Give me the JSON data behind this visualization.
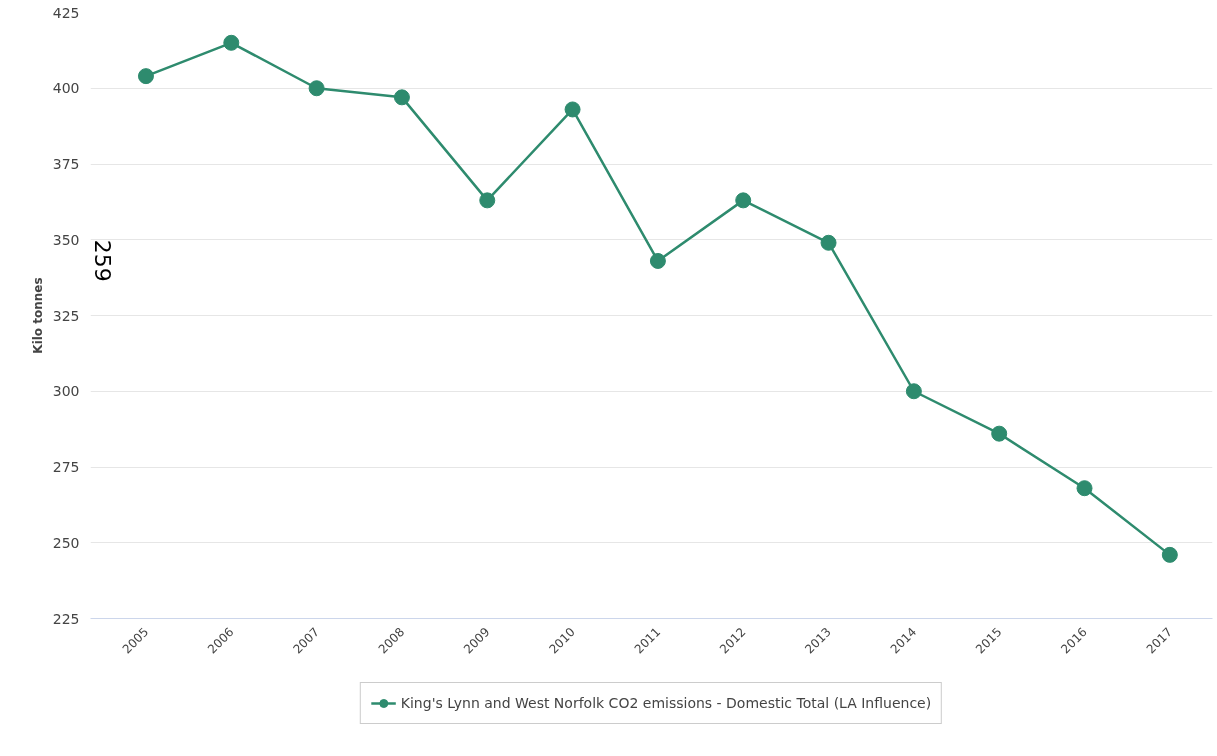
{
  "chart_data": {
    "type": "line",
    "ylabel": "Kilo tonnes",
    "categories": [
      "2005",
      "2006",
      "2007",
      "2008",
      "2009",
      "2010",
      "2011",
      "2012",
      "2013",
      "2014",
      "2015",
      "2016",
      "2017"
    ],
    "series": [
      {
        "name": "King's Lynn and West Norfolk CO2 emissions - Domestic Total (LA Influence)",
        "color": "#2e8b6e",
        "values": [
          404,
          415,
          400,
          397,
          363,
          393,
          343,
          363,
          349,
          300,
          286,
          268,
          246
        ]
      }
    ],
    "ylim": [
      225,
      425
    ],
    "yticks": [
      225,
      250,
      275,
      300,
      325,
      350,
      375,
      400,
      425
    ],
    "annotations": [
      "259"
    ],
    "grid": "y",
    "legend": "bottom",
    "marker": "circle",
    "line_style": "solid"
  }
}
